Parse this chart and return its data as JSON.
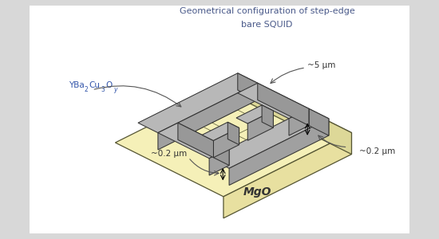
{
  "title_line1": "Geometrical configuration of step-edge",
  "title_line2": "bare SQUID",
  "title_color": "#4a5a8a",
  "background_color": "#d8d8d8",
  "panel_color": "#ffffff",
  "mgo_color": "#f5f0b8",
  "mgo_front_color": "#e8e0a0",
  "mgo_right_color": "#ddd898",
  "squid_top_color": "#b8b8b8",
  "squid_front_color": "#a0a0a0",
  "squid_right_color": "#989898",
  "squid_edge_color": "#333333",
  "mgo_edge_color": "#555533",
  "label_mgo": "MgO",
  "label_5um": "~5 μm",
  "label_02um_left": "~0.2 μm",
  "label_02um_right": "~0.2 μm",
  "text_color": "#333333",
  "arrow_color": "#555555"
}
